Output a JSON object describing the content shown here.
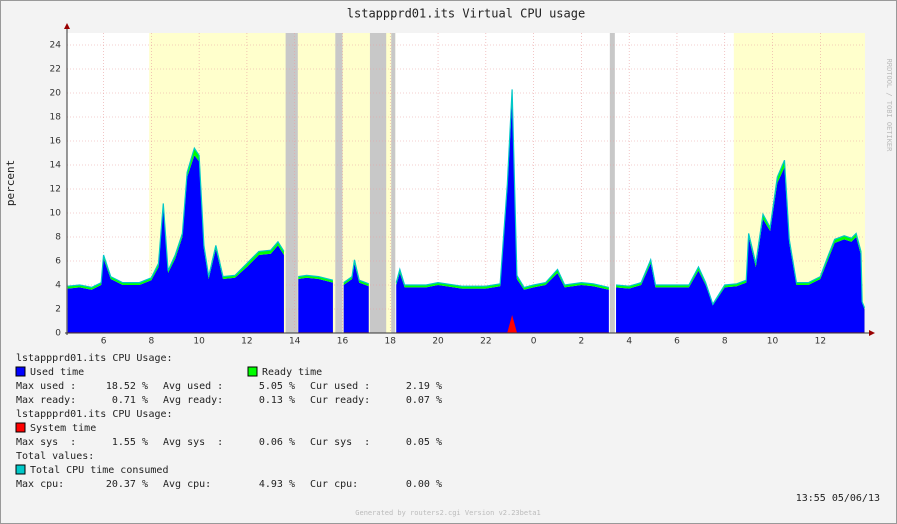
{
  "chart_data": {
    "type": "area",
    "title": "lstappprd01.its Virtual CPU usage",
    "y_label": "percent",
    "xlim": [
      4.47,
      37.87
    ],
    "ylim": [
      0,
      25
    ],
    "yticks": [
      0,
      2,
      4,
      6,
      8,
      10,
      12,
      14,
      16,
      18,
      20,
      22,
      24
    ],
    "xticks": [
      6,
      8,
      10,
      12,
      14,
      16,
      18,
      20,
      22,
      {
        "value": 24,
        "label": "0"
      },
      {
        "value": 26,
        "label": "2"
      },
      {
        "value": 28,
        "label": "4"
      },
      {
        "value": 30,
        "label": "6"
      },
      {
        "value": 32,
        "label": "8"
      },
      {
        "value": 34,
        "label": "10"
      },
      {
        "value": 36,
        "label": "12"
      }
    ],
    "grid": true,
    "highlight_bands": {
      "color": "#ffffcc",
      "ranges": [
        [
          7.91,
          18.21
        ],
        [
          32.38,
          37.87
        ]
      ]
    },
    "gap_bands": {
      "color": "#c8c8c8",
      "ranges": [
        [
          13.62,
          14.13
        ],
        [
          15.7,
          16.0
        ],
        [
          17.15,
          17.83
        ],
        [
          18.04,
          18.21
        ],
        [
          27.19,
          27.4
        ]
      ]
    },
    "x": [
      4.5,
      5.0,
      5.5,
      5.9,
      6.0,
      6.3,
      6.8,
      7.5,
      8.0,
      8.3,
      8.5,
      8.7,
      9.0,
      9.3,
      9.5,
      9.8,
      10.0,
      10.2,
      10.4,
      10.7,
      11.0,
      11.5,
      12.0,
      12.5,
      13.0,
      13.3,
      13.55,
      13.8,
      14.15,
      14.5,
      15.0,
      15.6,
      15.8,
      16.05,
      16.4,
      16.5,
      16.7,
      17.1,
      17.5,
      18.25,
      18.4,
      18.6,
      19.5,
      20.0,
      21.0,
      22.0,
      22.6,
      22.9,
      23.1,
      23.3,
      23.6,
      24.0,
      24.5,
      25.0,
      25.3,
      26.0,
      26.5,
      27.15,
      27.3,
      27.45,
      28.0,
      28.5,
      28.9,
      29.1,
      30.0,
      30.5,
      30.9,
      31.2,
      31.5,
      32.0,
      32.5,
      32.9,
      33.0,
      33.3,
      33.6,
      33.9,
      34.2,
      34.5,
      34.7,
      35.0,
      35.5,
      36.0,
      36.3,
      36.6,
      37.0,
      37.3,
      37.5,
      37.7,
      37.75,
      37.85
    ],
    "series": [
      {
        "name": "Used time",
        "color": "#0000ff",
        "values": [
          3.7,
          3.8,
          3.6,
          4.0,
          6.2,
          4.5,
          4.0,
          4.0,
          4.4,
          5.5,
          10.5,
          5.0,
          6.2,
          8.0,
          13.0,
          14.8,
          14.3,
          7.0,
          4.5,
          7.0,
          4.5,
          4.6,
          5.5,
          6.5,
          6.6,
          7.3,
          6.5,
          null,
          4.5,
          4.6,
          4.5,
          4.2,
          null,
          4.0,
          4.5,
          5.8,
          4.2,
          3.9,
          null,
          4.0,
          5.0,
          3.8,
          3.8,
          4.0,
          3.7,
          3.7,
          3.9,
          12.0,
          19.5,
          4.5,
          3.6,
          3.8,
          4.0,
          5.0,
          3.8,
          4.0,
          3.9,
          3.6,
          null,
          3.8,
          3.7,
          4.0,
          5.8,
          3.8,
          3.8,
          3.8,
          5.2,
          4.0,
          2.3,
          3.8,
          3.9,
          4.2,
          8.0,
          5.5,
          9.5,
          8.5,
          12.5,
          13.8,
          7.5,
          4.0,
          4.0,
          4.5,
          6.0,
          7.5,
          7.8,
          7.6,
          8.0,
          6.5,
          2.5,
          2.0
        ]
      },
      {
        "name": "Ready time",
        "color": "#00ff00",
        "values": [
          0.2,
          0.2,
          0.2,
          0.2,
          0.3,
          0.2,
          0.2,
          0.2,
          0.2,
          0.3,
          0.3,
          0.2,
          0.3,
          0.3,
          0.4,
          0.6,
          0.5,
          0.3,
          0.2,
          0.3,
          0.2,
          0.2,
          0.3,
          0.3,
          0.3,
          0.3,
          0.3,
          null,
          0.2,
          0.2,
          0.2,
          0.2,
          null,
          0.2,
          0.2,
          0.3,
          0.2,
          0.2,
          null,
          0.2,
          0.3,
          0.2,
          0.2,
          0.2,
          0.2,
          0.2,
          0.2,
          0.4,
          0.8,
          0.3,
          0.2,
          0.2,
          0.2,
          0.3,
          0.2,
          0.2,
          0.2,
          0.2,
          null,
          0.2,
          0.2,
          0.2,
          0.3,
          0.2,
          0.2,
          0.2,
          0.3,
          0.2,
          0.1,
          0.2,
          0.2,
          0.2,
          0.3,
          0.3,
          0.4,
          0.3,
          0.5,
          0.6,
          0.3,
          0.2,
          0.2,
          0.2,
          0.3,
          0.3,
          0.3,
          0.3,
          0.3,
          0.3,
          0.1,
          0.1
        ]
      },
      {
        "name": "System time",
        "color": "#ff0000",
        "values": [
          0.05,
          0.05,
          0.05,
          0.05,
          0.05,
          0.05,
          0.05,
          0.05,
          0.05,
          0.05,
          0.05,
          0.05,
          0.05,
          0.05,
          0.05,
          0.05,
          0.05,
          0.05,
          0.05,
          0.05,
          0.05,
          0.05,
          0.05,
          0.05,
          0.05,
          0.05,
          0.05,
          null,
          0.05,
          0.05,
          0.05,
          0.05,
          null,
          0.05,
          0.05,
          0.05,
          0.05,
          0.05,
          null,
          0.05,
          0.05,
          0.05,
          0.05,
          0.05,
          0.05,
          0.05,
          0.05,
          0.05,
          1.5,
          0.05,
          0.05,
          0.05,
          0.05,
          0.05,
          0.05,
          0.05,
          0.05,
          0.05,
          null,
          0.05,
          0.05,
          0.05,
          0.05,
          0.05,
          0.05,
          0.05,
          0.05,
          0.05,
          0.05,
          0.05,
          0.05,
          0.05,
          0.05,
          0.05,
          0.05,
          0.05,
          0.05,
          0.05,
          0.05,
          0.05,
          0.05,
          0.05,
          0.05,
          0.05,
          0.05,
          0.05,
          0.05,
          0.05,
          0.05,
          0.05
        ]
      },
      {
        "name": "Total CPU time consumed",
        "color": "#00c8c8",
        "values": [
          3.9,
          4.0,
          3.8,
          4.2,
          6.5,
          4.7,
          4.2,
          4.2,
          4.6,
          5.8,
          10.8,
          5.2,
          6.5,
          8.3,
          13.4,
          15.4,
          14.8,
          7.3,
          4.7,
          7.3,
          4.7,
          4.8,
          5.8,
          6.8,
          6.9,
          7.6,
          6.8,
          null,
          4.7,
          4.8,
          4.7,
          4.4,
          null,
          4.2,
          4.7,
          6.1,
          4.4,
          4.1,
          null,
          4.2,
          5.3,
          4.0,
          4.0,
          4.2,
          3.9,
          3.9,
          4.1,
          12.4,
          20.3,
          4.8,
          3.8,
          4.0,
          4.2,
          5.3,
          4.0,
          4.2,
          4.1,
          3.8,
          null,
          4.0,
          3.9,
          4.2,
          6.1,
          4.0,
          4.0,
          4.0,
          5.5,
          4.2,
          2.4,
          4.0,
          4.1,
          4.4,
          8.3,
          5.8,
          9.9,
          8.8,
          13.0,
          14.4,
          7.8,
          4.2,
          4.2,
          4.7,
          6.3,
          7.8,
          8.1,
          7.9,
          8.3,
          6.8,
          2.6,
          2.1
        ]
      }
    ],
    "stats": [
      {
        "heading": "lstappprd01.its CPU Usage:",
        "rows": [
          [
            "Max used :",
            "18.52 %",
            "Avg used :",
            "5.05 %",
            "Cur used :",
            "2.19 %"
          ],
          [
            "Max ready:",
            "0.71 %",
            "Avg ready:",
            "0.13 %",
            "Cur ready:",
            "0.07 %"
          ]
        ]
      },
      {
        "heading": "lstappprd01.its CPU Usage:",
        "rows": [
          [
            "Max sys  :",
            "1.55 %",
            "Avg sys  :",
            "0.06 %",
            "Cur sys  :",
            "0.05 %"
          ]
        ]
      },
      {
        "heading": "Total values:",
        "rows": [
          [
            "Max cpu:",
            "20.37 %",
            "Avg cpu:",
            "4.93 %",
            "Cur cpu:",
            "0.00 %"
          ]
        ]
      }
    ],
    "timestamp": "13:55 05/06/13",
    "footer": "Generated by routers2.cgi Version v2.23beta1",
    "watermark": "RRDTOOL / TOBI OETIKER"
  }
}
